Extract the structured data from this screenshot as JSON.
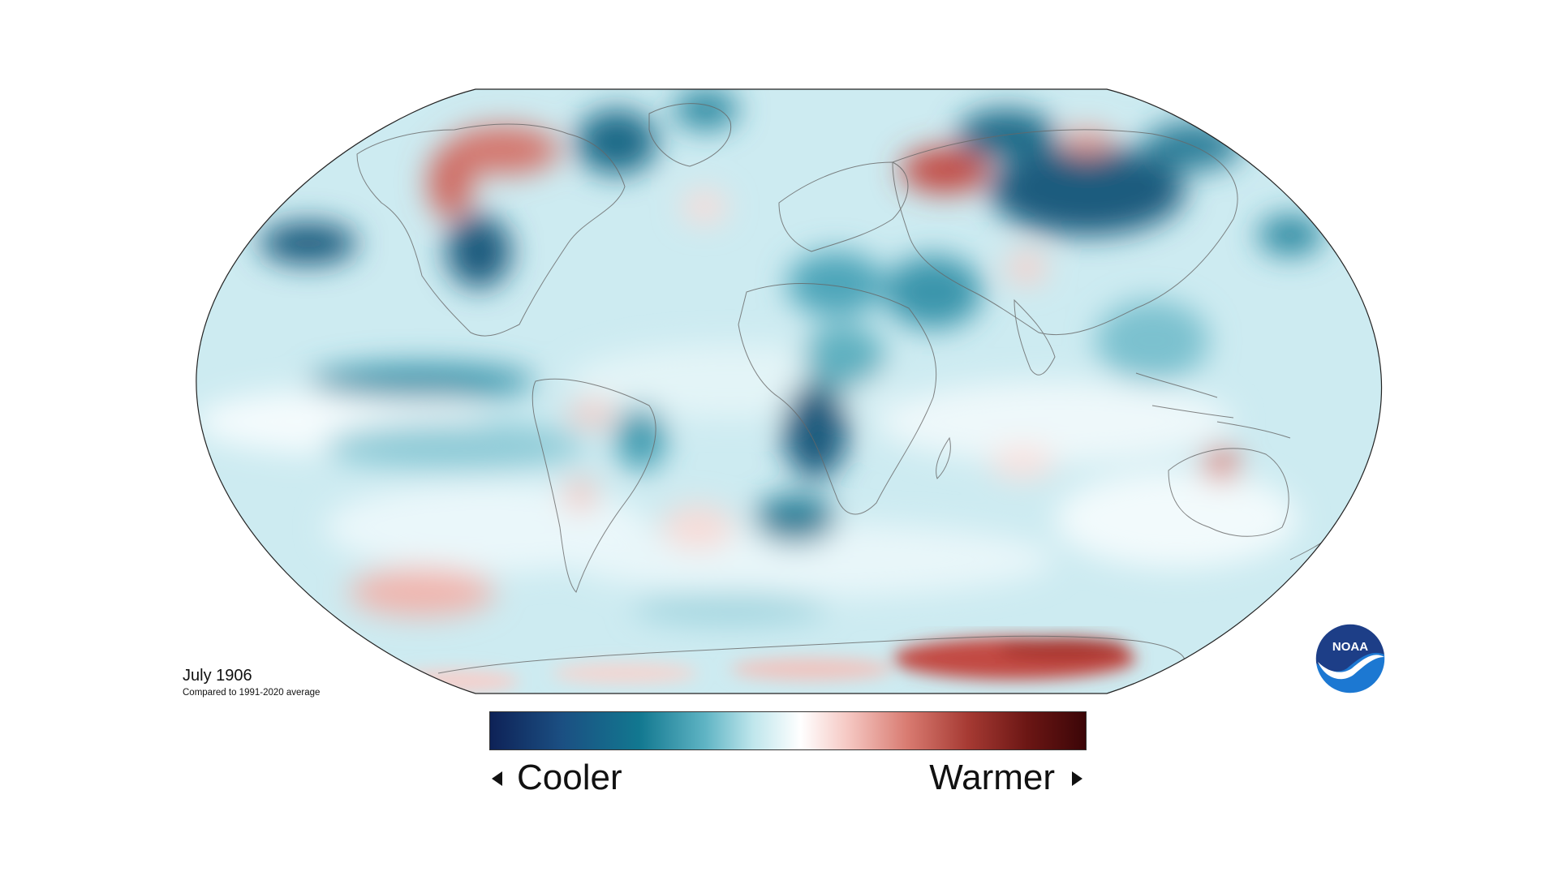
{
  "map": {
    "date_label": "July 1906",
    "comparison_label": "Compared to 1991-2020 average"
  },
  "legend": {
    "low_label": "Cooler",
    "high_label": "Warmer",
    "colors": [
      "#0e2257",
      "#1b4f82",
      "#127890",
      "#5fb4c4",
      "#bfe6ec",
      "#ffffff",
      "#f5c7c2",
      "#d87a70",
      "#a63a33",
      "#6b1614",
      "#3a0507"
    ]
  },
  "logo": {
    "text": "NOAA",
    "colors": {
      "top": "#1d3e87",
      "bottom": "#1c78d2",
      "bird": "#ffffff"
    }
  },
  "colors": {
    "ocean_base": "#d4eef3",
    "cool_strong": "#1a5c7e",
    "cool_mid": "#3f9bb0",
    "warm_mid": "#e48c84",
    "warm_strong": "#c24a42",
    "coastline": "#555555"
  }
}
